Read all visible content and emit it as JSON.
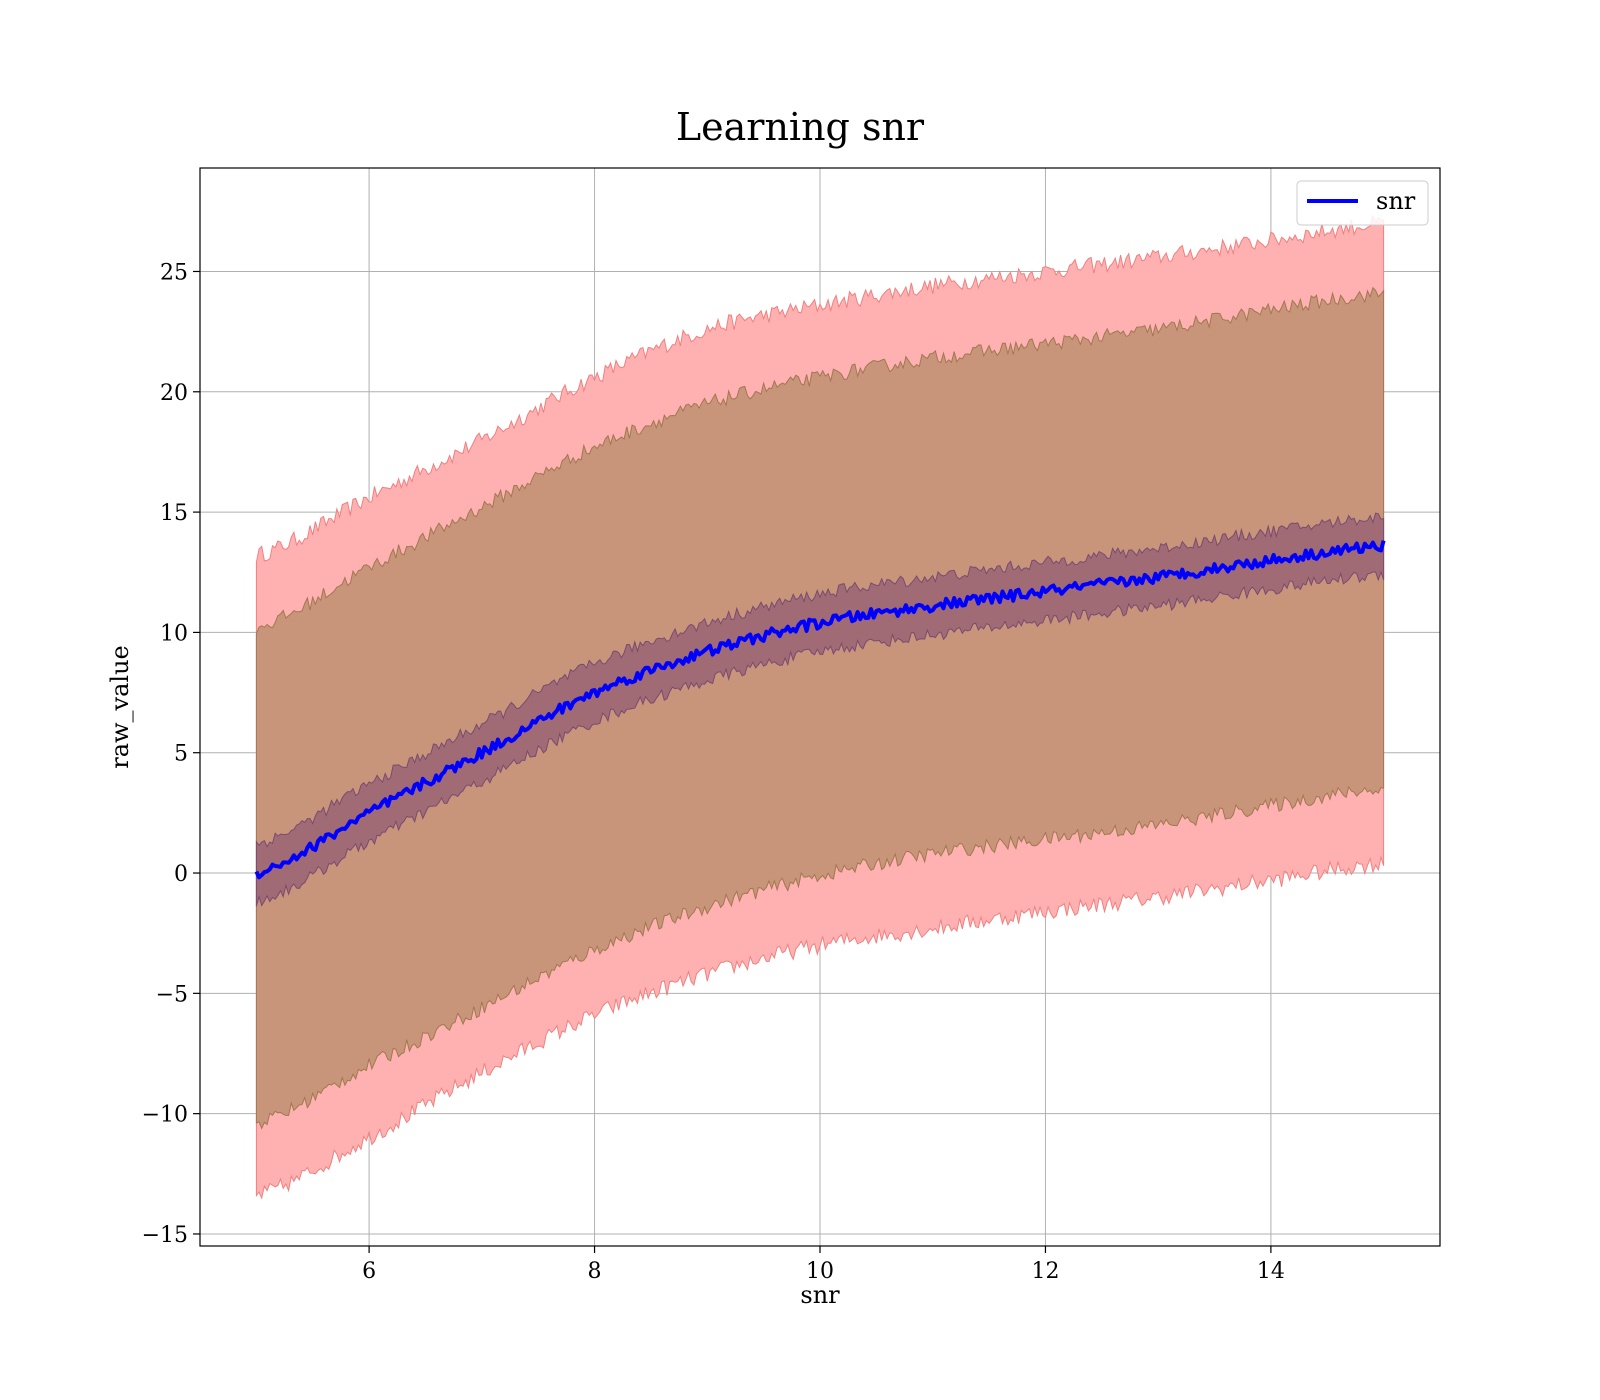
{
  "chart_data": {
    "type": "area",
    "title": "Learning snr",
    "xlabel": "snr",
    "ylabel": "raw_value",
    "xlim": [
      4.5,
      15.5
    ],
    "ylim": [
      -15.5,
      29.3
    ],
    "x_ticks": [
      6,
      8,
      10,
      12,
      14
    ],
    "y_ticks": [
      -15,
      -10,
      -5,
      0,
      5,
      10,
      15,
      20,
      25
    ],
    "grid": true,
    "legend": {
      "placement": "top-right",
      "entries": [
        "snr"
      ]
    },
    "colors": {
      "line": "#0000ff",
      "outer_band": "#ffb0b0",
      "outer_band_edge": "#f08080",
      "middle_band": "#c8957a",
      "middle_band_edge": "#a07850",
      "inner_band": "#9c6674",
      "inner_band_edge": "#7a4a70"
    },
    "x": [
      5,
      6,
      7,
      8,
      9,
      10,
      11,
      12,
      13,
      14,
      15
    ],
    "series": [
      {
        "name": "snr",
        "values": [
          0.0,
          2.5,
          5.0,
          7.5,
          9.2,
          10.4,
          11.1,
          11.7,
          12.3,
          13.0,
          13.6
        ]
      }
    ],
    "bands": [
      {
        "lower": [
          -13.4,
          -11.0,
          -8.3,
          -5.9,
          -4.2,
          -3.0,
          -2.3,
          -1.6,
          -1.0,
          -0.3,
          0.4
        ],
        "upper": [
          13.2,
          15.6,
          18.0,
          20.6,
          22.6,
          23.6,
          24.4,
          25.0,
          25.6,
          26.3,
          27.0
        ]
      },
      {
        "lower": [
          -10.4,
          -8.0,
          -5.6,
          -3.2,
          -1.4,
          -0.1,
          0.8,
          1.4,
          2.0,
          2.8,
          3.5
        ],
        "upper": [
          10.2,
          12.7,
          15.2,
          17.7,
          19.5,
          20.6,
          21.4,
          22.0,
          22.6,
          23.4,
          24.1
        ]
      },
      {
        "lower": [
          -1.2,
          1.3,
          3.8,
          6.3,
          8.0,
          9.2,
          9.9,
          10.5,
          11.1,
          11.8,
          12.4
        ],
        "upper": [
          1.2,
          3.7,
          6.2,
          8.7,
          10.4,
          11.6,
          12.3,
          12.9,
          13.5,
          14.2,
          14.8
        ]
      }
    ]
  }
}
